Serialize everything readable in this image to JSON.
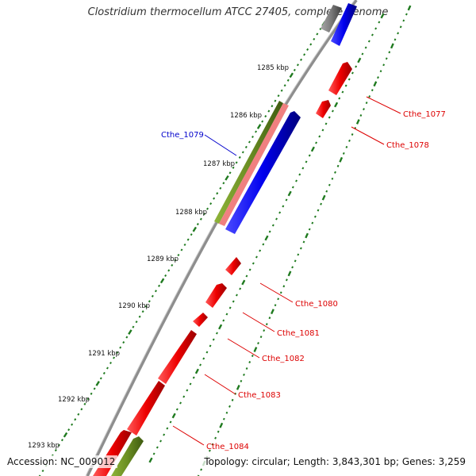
{
  "title": "Clostridium thermocellum ATCC 27405, complete genome",
  "footer": {
    "accession": "Accession: NC_009012",
    "summary": "Topology: circular; Length: 3,843,301 bp; Genes: 3,259"
  },
  "colors": {
    "backbone": "#8e8e8e",
    "forward_strand_gene": "#0000ff",
    "reverse_strand_gene": "#ff0000",
    "rna": "#6b8e23",
    "highlight": "#f08080",
    "tick": "#1f7a1f",
    "labelled_gene_blue": "#0000cc",
    "labelled_gene_red": "#dd0000"
  },
  "kbp_ticks": [
    "1285 kbp",
    "1286 kbp",
    "1287 kbp",
    "1288 kbp",
    "1289 kbp",
    "1290 kbp",
    "1291 kbp",
    "1292 kbp",
    "1293 kbp"
  ],
  "gene_labels": [
    {
      "text": "Cthe_1077",
      "color": "red"
    },
    {
      "text": "Cthe_1078",
      "color": "red"
    },
    {
      "text": "Cthe_1079",
      "color": "blue"
    },
    {
      "text": "Cthe_1080",
      "color": "red"
    },
    {
      "text": "Cthe_1081",
      "color": "red"
    },
    {
      "text": "Cthe_1082",
      "color": "red"
    },
    {
      "text": "Cthe_1083",
      "color": "red"
    },
    {
      "text": "Cthe_1084",
      "color": "red"
    }
  ]
}
